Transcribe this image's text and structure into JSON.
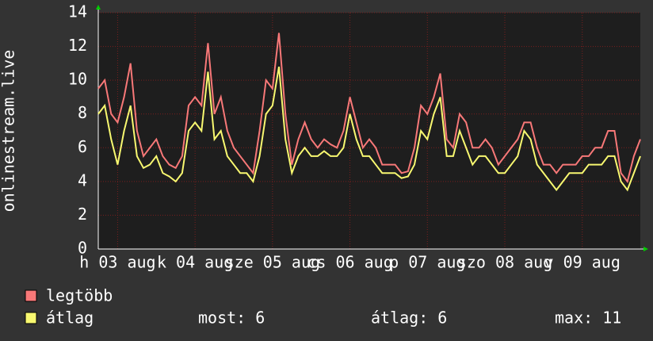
{
  "chart_data": {
    "type": "line",
    "ylabel": "onlinestream.live",
    "xlim": [
      0,
      168
    ],
    "ylim": [
      0,
      14
    ],
    "yticks": [
      0,
      2,
      4,
      6,
      8,
      10,
      12,
      14
    ],
    "xticks": [
      {
        "value": 6,
        "label": "h 03 aug"
      },
      {
        "value": 30,
        "label": "k 04 aug"
      },
      {
        "value": 54,
        "label": "sze 05 aug"
      },
      {
        "value": 78,
        "label": "cs 06 aug"
      },
      {
        "value": 102,
        "label": "p 07 aug"
      },
      {
        "value": 126,
        "label": "szo 08 aug"
      },
      {
        "value": 150,
        "label": "v 09 aug"
      }
    ],
    "grid": true,
    "x": [
      0,
      2,
      4,
      6,
      8,
      10,
      12,
      14,
      16,
      18,
      20,
      22,
      24,
      26,
      28,
      30,
      32,
      34,
      36,
      38,
      40,
      42,
      44,
      46,
      48,
      50,
      52,
      54,
      56,
      58,
      60,
      62,
      64,
      66,
      68,
      70,
      72,
      74,
      76,
      78,
      80,
      82,
      84,
      86,
      88,
      90,
      92,
      94,
      96,
      98,
      100,
      102,
      104,
      106,
      108,
      110,
      112,
      114,
      116,
      118,
      120,
      122,
      124,
      126,
      128,
      130,
      132,
      134,
      136,
      138,
      140,
      142,
      144,
      146,
      148,
      150,
      152,
      154,
      156,
      158,
      160,
      162,
      164,
      166,
      168
    ],
    "series": [
      {
        "name": "legtöbb",
        "color": "#f87878",
        "values": [
          9.5,
          10,
          8,
          7.5,
          9,
          11,
          7,
          5.5,
          6,
          6.5,
          5.5,
          5,
          4.8,
          5.5,
          8.5,
          9,
          8.5,
          12.2,
          8,
          9,
          7,
          6,
          5.5,
          5,
          4.5,
          7,
          10,
          9.5,
          12.8,
          8,
          5,
          6.5,
          7.5,
          6.5,
          6,
          6.5,
          6.2,
          6,
          7,
          9,
          7.5,
          6,
          6.5,
          6,
          5,
          5,
          5,
          4.5,
          4.6,
          6,
          8.5,
          8,
          9,
          10.4,
          6.5,
          6,
          8,
          7.5,
          6,
          6,
          6.5,
          6,
          5,
          5.5,
          6,
          6.5,
          7.5,
          7.5,
          6,
          5,
          5,
          4.5,
          5,
          5,
          5,
          5.5,
          5.5,
          6,
          6,
          7,
          7,
          4.5,
          4,
          5.5,
          6.5
        ]
      },
      {
        "name": "átlag",
        "color": "#f8f870",
        "values": [
          8,
          8.5,
          6.5,
          5,
          7,
          8.5,
          5.5,
          4.8,
          5,
          5.5,
          4.5,
          4.3,
          4,
          4.5,
          7,
          7.5,
          7,
          10.5,
          6.5,
          7,
          5.5,
          5,
          4.5,
          4.5,
          4,
          5.5,
          8,
          8.5,
          10.8,
          6.5,
          4.5,
          5.5,
          6,
          5.5,
          5.5,
          5.8,
          5.5,
          5.5,
          6,
          8,
          6.5,
          5.5,
          5.5,
          5,
          4.5,
          4.5,
          4.5,
          4.2,
          4.3,
          5,
          7,
          6.5,
          8,
          9,
          5.5,
          5.5,
          7,
          6,
          5,
          5.5,
          5.5,
          5,
          4.5,
          4.5,
          5,
          5.5,
          7,
          6.5,
          5,
          4.5,
          4,
          3.5,
          4,
          4.5,
          4.5,
          4.5,
          5,
          5,
          5,
          5.5,
          5.5,
          4,
          3.5,
          4.5,
          5.5
        ]
      }
    ],
    "stats": [
      "most: 6",
      "átlag: 6",
      "max: 11"
    ]
  }
}
